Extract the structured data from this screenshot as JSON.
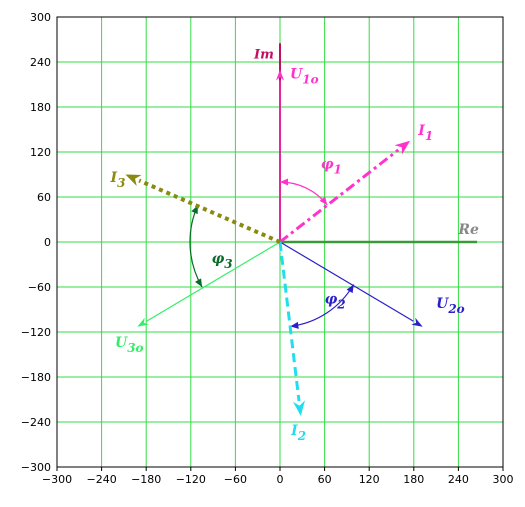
{
  "chart_data": {
    "type": "phasor-diagram",
    "xlim": [
      -300,
      300
    ],
    "ylim": [
      -300,
      300
    ],
    "grid": true,
    "grid_color": "#33dd44",
    "x_ticks": [
      -300,
      -240,
      -180,
      -120,
      -60,
      0,
      60,
      120,
      180,
      240,
      300
    ],
    "y_ticks": [
      -300,
      -240,
      -180,
      -120,
      -60,
      0,
      60,
      120,
      180,
      240,
      300
    ],
    "axes": {
      "re_label": "Re",
      "im_label": "Im",
      "re_color": "#3a9a3a",
      "im_color": "#c01060"
    },
    "vectors": [
      {
        "id": "U1o",
        "label_main": "U",
        "label_sub": "1o",
        "x": 0,
        "y": 230,
        "color": "#ff33cc",
        "style": "solid"
      },
      {
        "id": "U2o",
        "label_main": "U",
        "label_sub": "2o",
        "x": 192,
        "y": -113,
        "color": "#2a1fc8",
        "style": "solid"
      },
      {
        "id": "U3o",
        "label_main": "U",
        "label_sub": "3o",
        "x": -192,
        "y": -113,
        "color": "#33ee66",
        "style": "solid"
      },
      {
        "id": "I1",
        "label_main": "I",
        "label_sub": "1",
        "x": 175,
        "y": 135,
        "color": "#ff33cc",
        "style": "dashdot"
      },
      {
        "id": "I2",
        "label_main": "I",
        "label_sub": "2",
        "x": 28,
        "y": -232,
        "color": "#22ddee",
        "style": "dash"
      },
      {
        "id": "I3",
        "label_main": "I",
        "label_sub": "3",
        "x": -208,
        "y": 90,
        "color": "#8a8a10",
        "style": "dot"
      }
    ],
    "angles": [
      {
        "id": "phi1",
        "label_main": "φ",
        "label_sub": "1",
        "color": "#ff33cc",
        "from_deg": 90,
        "to_deg": 38,
        "radius": 60
      },
      {
        "id": "phi2",
        "label_main": "φ",
        "label_sub": "2",
        "color": "#2a1fc8",
        "from_deg": -30,
        "to_deg": -83,
        "radius": 85
      },
      {
        "id": "phi3",
        "label_main": "φ",
        "label_sub": "3",
        "color": "#0a6a2a",
        "from_deg": 210,
        "to_deg": 156,
        "radius": 90
      }
    ]
  }
}
